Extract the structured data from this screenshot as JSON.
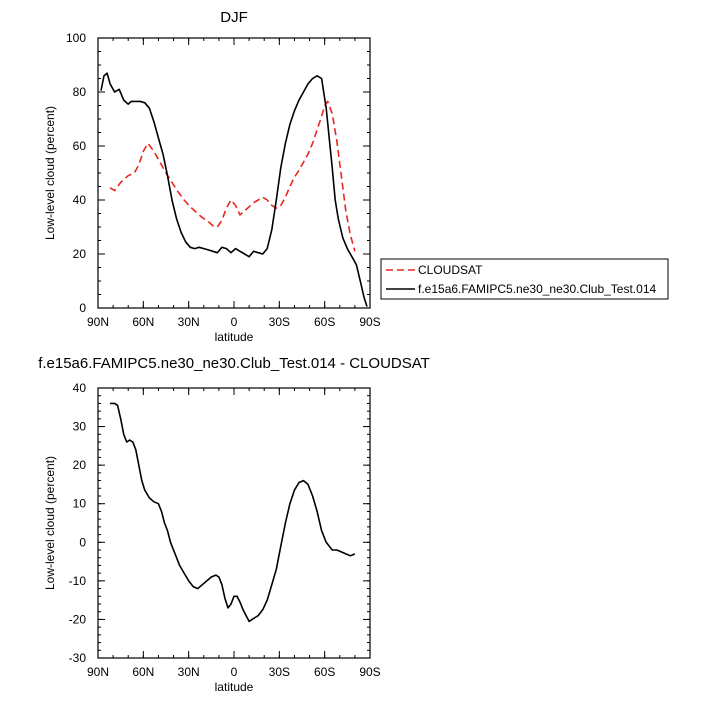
{
  "chart_data": [
    {
      "type": "line",
      "title": "DJF",
      "xlabel": "latitude",
      "ylabel": "Low-level cloud (percent)",
      "xlim": [
        90,
        -90
      ],
      "ylim": [
        0,
        100
      ],
      "x_ticks": [
        90,
        60,
        30,
        0,
        -30,
        -60,
        -90
      ],
      "x_tick_labels": [
        "90N",
        "60N",
        "30N",
        "0",
        "30S",
        "60S",
        "90S"
      ],
      "y_ticks": [
        0,
        20,
        40,
        60,
        80,
        100
      ],
      "y_tick_labels": [
        "0",
        "20",
        "40",
        "60",
        "80",
        "100"
      ],
      "legend_placement": "right-outside",
      "series": [
        {
          "name": "CLOUDSAT",
          "color": "#e8281e",
          "dash": "dashed",
          "x": [
            82,
            79,
            75,
            70,
            66,
            63,
            60,
            57,
            53,
            49,
            45,
            41,
            37,
            33,
            29,
            25,
            21,
            17,
            14,
            11,
            8,
            5,
            2,
            -1,
            -4,
            -7,
            -10,
            -13,
            -16,
            -19,
            -22,
            -25,
            -28,
            -31,
            -34,
            -37,
            -40,
            -43,
            -46,
            -49,
            -52,
            -55,
            -58,
            -60,
            -62,
            -65,
            -68,
            -71,
            -74,
            -77,
            -80
          ],
          "y": [
            44.5,
            43.5,
            46.5,
            49,
            50,
            53,
            58,
            61,
            58,
            54,
            50,
            46.5,
            43,
            40,
            37.5,
            35.5,
            33.5,
            32,
            30.5,
            30,
            32.5,
            37,
            40,
            38,
            34.5,
            36,
            37.5,
            39,
            40,
            41,
            40,
            38,
            37,
            38,
            41,
            45,
            48.5,
            51,
            54,
            57,
            61,
            66,
            71,
            75,
            76.5,
            72,
            62,
            49,
            36,
            27,
            21
          ]
        },
        {
          "name": "f.e15a6.FAMIPC5.ne30_ne30.Club_Test.014",
          "color": "#000000",
          "dash": "solid",
          "x": [
            88,
            86,
            84,
            82,
            79,
            76,
            73,
            70,
            68,
            65,
            62,
            59,
            56,
            53,
            50,
            47,
            44,
            41,
            38,
            35,
            32,
            29,
            26,
            23,
            20,
            17,
            14,
            11,
            8,
            5,
            2,
            -1,
            -4,
            -7,
            -10,
            -13,
            -16,
            -19,
            -22,
            -25,
            -28,
            -31,
            -34,
            -37,
            -40,
            -43,
            -46,
            -49,
            -52,
            -55,
            -58,
            -61,
            -63,
            -65,
            -67,
            -69,
            -72,
            -75,
            -78,
            -81,
            -84,
            -86,
            -88
          ],
          "y": [
            80.5,
            86,
            87,
            83,
            80,
            81,
            77,
            75.5,
            76.5,
            76.5,
            76.5,
            76,
            74,
            69,
            63,
            57,
            49,
            40,
            33,
            28,
            24.5,
            22.5,
            22,
            22.5,
            22,
            21.5,
            21,
            20.5,
            22.5,
            22,
            20.5,
            22,
            21,
            20,
            19,
            21,
            20.5,
            20,
            22,
            29,
            40,
            52,
            61,
            68,
            73,
            77,
            80,
            83,
            85,
            86,
            85,
            74,
            63,
            52,
            40,
            33,
            26,
            22,
            19,
            16,
            9,
            4,
            0.5
          ]
        }
      ]
    },
    {
      "type": "line",
      "title": "f.e15a6.FAMIPC5.ne30_ne30.Club_Test.014 - CLOUDSAT",
      "xlabel": "latitude",
      "ylabel": "Low-level cloud (percent)",
      "xlim": [
        90,
        -90
      ],
      "ylim": [
        -30,
        40
      ],
      "x_ticks": [
        90,
        60,
        30,
        0,
        -30,
        -60,
        -90
      ],
      "x_tick_labels": [
        "90N",
        "60N",
        "30N",
        "0",
        "30S",
        "60S",
        "90S"
      ],
      "y_ticks": [
        -30,
        -20,
        -10,
        0,
        10,
        20,
        30,
        40
      ],
      "y_tick_labels": [
        "-30",
        "-20",
        "-10",
        "0",
        "10",
        "20",
        "30",
        "40"
      ],
      "series": [
        {
          "color": "#000000",
          "dash": "solid",
          "x": [
            82,
            79,
            77,
            75,
            73,
            71,
            69,
            67,
            65,
            63,
            61,
            59,
            56,
            53,
            50,
            48,
            46,
            44,
            42,
            39,
            36,
            33,
            30,
            27,
            24,
            21,
            18,
            15,
            12,
            10,
            8,
            6,
            4,
            2,
            0,
            -2,
            -4,
            -6,
            -8,
            -10,
            -12,
            -14,
            -16,
            -19,
            -22,
            -25,
            -28,
            -31,
            -34,
            -37,
            -40,
            -43,
            -46,
            -49,
            -52,
            -55,
            -58,
            -61,
            -63,
            -65,
            -68,
            -71,
            -74,
            -77,
            -80
          ],
          "y": [
            36,
            36,
            35.5,
            32,
            28,
            26,
            26.5,
            26,
            24,
            20,
            16,
            13.5,
            11.5,
            10.5,
            10,
            8,
            5,
            3,
            0,
            -3,
            -6,
            -8,
            -10,
            -11.5,
            -12,
            -11,
            -10,
            -9,
            -8.5,
            -9,
            -11,
            -14.5,
            -17,
            -16,
            -14,
            -14,
            -15.5,
            -17.5,
            -19,
            -20.5,
            -20,
            -19.5,
            -19,
            -17.5,
            -15,
            -11,
            -7,
            -1,
            5,
            10,
            13.5,
            15.5,
            16,
            15,
            12,
            8,
            3,
            0,
            -1,
            -2,
            -2,
            -2.5,
            -3,
            -3.5,
            -3
          ]
        }
      ]
    }
  ]
}
